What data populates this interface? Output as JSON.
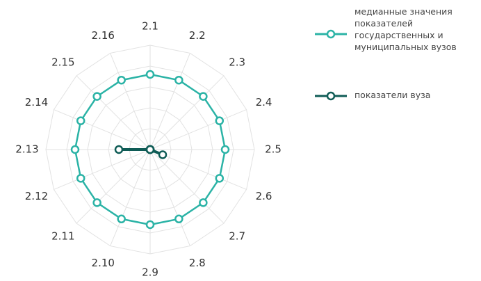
{
  "chart_data": {
    "type": "radar",
    "categories": [
      "2.1",
      "2.2",
      "2.3",
      "2.4",
      "2.5",
      "2.6",
      "2.7",
      "2.8",
      "2.9",
      "2.10",
      "2.11",
      "2.12",
      "2.13",
      "2.14",
      "2.15",
      "2.16"
    ],
    "series": [
      {
        "name": "медианные значения показателей государственных и муниципальных вузов",
        "color": "#2bb3a6",
        "values": [
          72,
          72,
          72,
          72,
          72,
          72,
          72,
          72,
          72,
          72,
          72,
          72,
          72,
          72,
          72,
          72
        ]
      },
      {
        "name": "показатели вуза",
        "color": "#0f5c56",
        "values": [
          0,
          0,
          0,
          0,
          0,
          13,
          0,
          0,
          0,
          0,
          0,
          0,
          30,
          0,
          0,
          0
        ]
      }
    ],
    "ylim": [
      0,
      100
    ],
    "yticks": [
      20,
      40,
      60,
      80,
      100
    ],
    "grid": true
  }
}
